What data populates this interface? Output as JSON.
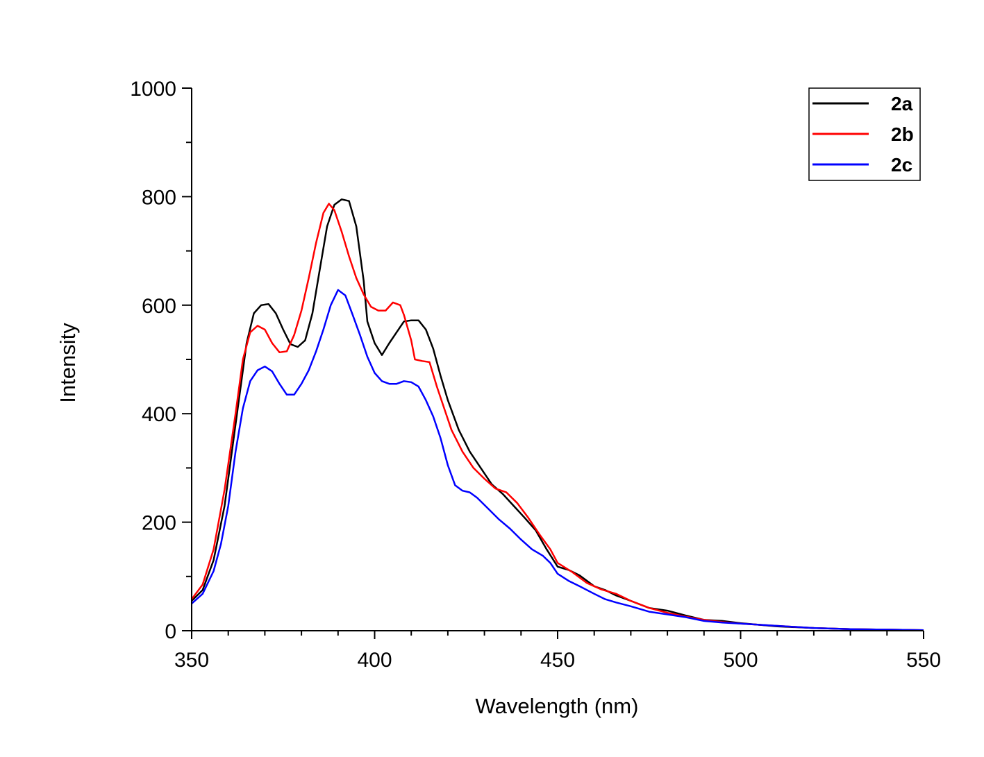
{
  "chart_data": {
    "type": "line",
    "title": "",
    "xlabel": "Wavelength (nm)",
    "ylabel": "Intensity",
    "xlim": [
      350,
      550
    ],
    "ylim": [
      0,
      1000
    ],
    "x_ticks": [
      "350",
      "400",
      "450",
      "500",
      "550"
    ],
    "y_ticks": [
      "0",
      "200",
      "400",
      "600",
      "800",
      "1000"
    ],
    "grid": false,
    "legend_position": "top-right",
    "series": [
      {
        "name": "2a",
        "color": "#000000",
        "points": [
          [
            350,
            55
          ],
          [
            353,
            75
          ],
          [
            356,
            130
          ],
          [
            359,
            230
          ],
          [
            362,
            380
          ],
          [
            365,
            530
          ],
          [
            367,
            585
          ],
          [
            369,
            600
          ],
          [
            371,
            602
          ],
          [
            373,
            585
          ],
          [
            375,
            555
          ],
          [
            377,
            528
          ],
          [
            379,
            523
          ],
          [
            381,
            535
          ],
          [
            383,
            585
          ],
          [
            385,
            665
          ],
          [
            387,
            745
          ],
          [
            389,
            785
          ],
          [
            391,
            795
          ],
          [
            393,
            792
          ],
          [
            395,
            745
          ],
          [
            397,
            645
          ],
          [
            398,
            570
          ],
          [
            400,
            530
          ],
          [
            402,
            508
          ],
          [
            404,
            530
          ],
          [
            406,
            550
          ],
          [
            408,
            570
          ],
          [
            410,
            572
          ],
          [
            412,
            572
          ],
          [
            414,
            555
          ],
          [
            416,
            520
          ],
          [
            418,
            470
          ],
          [
            420,
            425
          ],
          [
            423,
            370
          ],
          [
            426,
            330
          ],
          [
            429,
            300
          ],
          [
            432,
            270
          ],
          [
            435,
            252
          ],
          [
            438,
            230
          ],
          [
            441,
            208
          ],
          [
            444,
            185
          ],
          [
            447,
            150
          ],
          [
            450,
            118
          ],
          [
            453,
            112
          ],
          [
            456,
            102
          ],
          [
            460,
            82
          ],
          [
            463,
            75
          ],
          [
            466,
            65
          ],
          [
            470,
            55
          ],
          [
            475,
            42
          ],
          [
            480,
            37
          ],
          [
            485,
            28
          ],
          [
            490,
            20
          ],
          [
            495,
            18
          ],
          [
            500,
            14
          ],
          [
            510,
            8
          ],
          [
            520,
            5
          ],
          [
            530,
            3
          ],
          [
            540,
            2
          ],
          [
            550,
            1
          ]
        ]
      },
      {
        "name": "2b",
        "color": "#ff0000",
        "points": [
          [
            350,
            58
          ],
          [
            353,
            85
          ],
          [
            356,
            150
          ],
          [
            359,
            260
          ],
          [
            362,
            400
          ],
          [
            364,
            500
          ],
          [
            366,
            550
          ],
          [
            368,
            562
          ],
          [
            370,
            555
          ],
          [
            372,
            530
          ],
          [
            374,
            513
          ],
          [
            376,
            515
          ],
          [
            378,
            545
          ],
          [
            380,
            590
          ],
          [
            382,
            650
          ],
          [
            384,
            715
          ],
          [
            386,
            770
          ],
          [
            387.5,
            787
          ],
          [
            389,
            775
          ],
          [
            391,
            735
          ],
          [
            393,
            690
          ],
          [
            395,
            650
          ],
          [
            397,
            620
          ],
          [
            399,
            597
          ],
          [
            401,
            590
          ],
          [
            403,
            590
          ],
          [
            405,
            605
          ],
          [
            407,
            600
          ],
          [
            408,
            582
          ],
          [
            410,
            535
          ],
          [
            411,
            500
          ],
          [
            413,
            497
          ],
          [
            415,
            495
          ],
          [
            417,
            450
          ],
          [
            419,
            410
          ],
          [
            421,
            370
          ],
          [
            424,
            330
          ],
          [
            427,
            300
          ],
          [
            430,
            280
          ],
          [
            433,
            262
          ],
          [
            436,
            255
          ],
          [
            439,
            235
          ],
          [
            442,
            208
          ],
          [
            445,
            178
          ],
          [
            448,
            150
          ],
          [
            450,
            125
          ],
          [
            454,
            108
          ],
          [
            458,
            88
          ],
          [
            462,
            76
          ],
          [
            466,
            68
          ],
          [
            470,
            55
          ],
          [
            475,
            42
          ],
          [
            480,
            33
          ],
          [
            485,
            26
          ],
          [
            490,
            20
          ],
          [
            495,
            16
          ],
          [
            500,
            13
          ],
          [
            510,
            9
          ],
          [
            520,
            5
          ],
          [
            530,
            3
          ],
          [
            540,
            2
          ],
          [
            550,
            1
          ]
        ]
      },
      {
        "name": "2c",
        "color": "#0000ff",
        "points": [
          [
            350,
            50
          ],
          [
            353,
            68
          ],
          [
            356,
            110
          ],
          [
            358,
            160
          ],
          [
            360,
            230
          ],
          [
            362,
            330
          ],
          [
            364,
            410
          ],
          [
            366,
            460
          ],
          [
            368,
            480
          ],
          [
            370,
            487
          ],
          [
            372,
            478
          ],
          [
            374,
            455
          ],
          [
            376,
            435
          ],
          [
            378,
            435
          ],
          [
            380,
            455
          ],
          [
            382,
            480
          ],
          [
            384,
            515
          ],
          [
            386,
            555
          ],
          [
            388,
            600
          ],
          [
            390,
            628
          ],
          [
            392,
            618
          ],
          [
            394,
            582
          ],
          [
            396,
            545
          ],
          [
            398,
            505
          ],
          [
            400,
            475
          ],
          [
            402,
            460
          ],
          [
            404,
            455
          ],
          [
            406,
            455
          ],
          [
            408,
            460
          ],
          [
            410,
            458
          ],
          [
            412,
            450
          ],
          [
            414,
            425
          ],
          [
            416,
            395
          ],
          [
            418,
            355
          ],
          [
            420,
            305
          ],
          [
            422,
            268
          ],
          [
            424,
            258
          ],
          [
            426,
            255
          ],
          [
            428,
            245
          ],
          [
            431,
            225
          ],
          [
            434,
            205
          ],
          [
            437,
            188
          ],
          [
            440,
            168
          ],
          [
            443,
            150
          ],
          [
            446,
            138
          ],
          [
            448,
            125
          ],
          [
            450,
            105
          ],
          [
            453,
            92
          ],
          [
            456,
            82
          ],
          [
            460,
            68
          ],
          [
            463,
            58
          ],
          [
            466,
            52
          ],
          [
            470,
            45
          ],
          [
            475,
            35
          ],
          [
            480,
            30
          ],
          [
            485,
            25
          ],
          [
            490,
            18
          ],
          [
            495,
            15
          ],
          [
            500,
            13
          ],
          [
            510,
            9
          ],
          [
            520,
            5
          ],
          [
            530,
            3
          ],
          [
            540,
            2
          ],
          [
            550,
            1
          ]
        ]
      }
    ]
  }
}
